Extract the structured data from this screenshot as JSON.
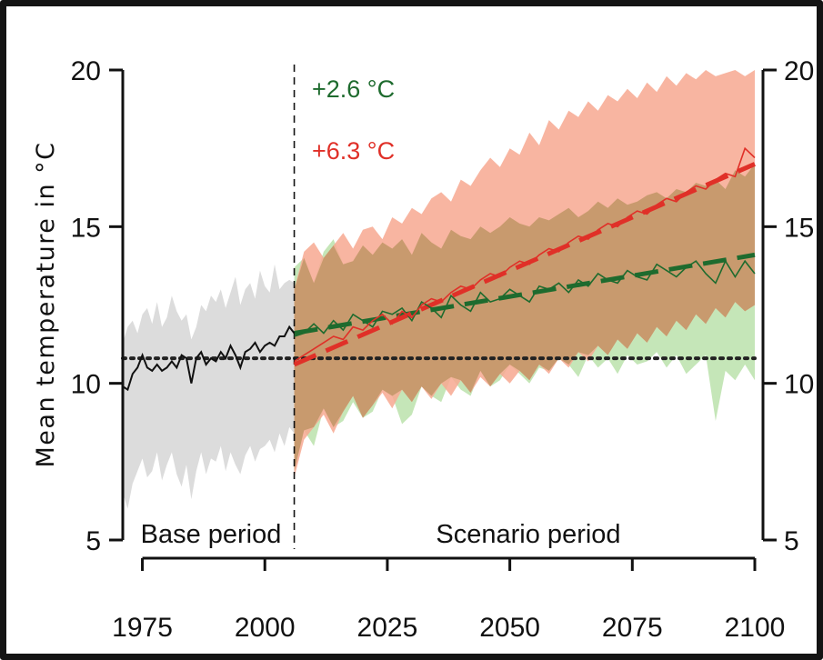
{
  "chart_data": {
    "type": "line",
    "xlabel": "",
    "ylabel": "Mean temperature in °C",
    "ylim": [
      5,
      20
    ],
    "xlim": [
      1971,
      2100
    ],
    "y_ticks": [
      "5",
      "10",
      "15",
      "20"
    ],
    "x_ticks": [
      "1975",
      "2000",
      "2025",
      "2050",
      "2075",
      "2100"
    ],
    "split_year": 2006,
    "period_labels": {
      "base": "Base period",
      "scenario": "Scenario period"
    },
    "annotations": [
      {
        "text": "+2.6 °C",
        "color": "#1e6b2e"
      },
      {
        "text": "+6.3 °C",
        "color": "#e03028"
      }
    ],
    "baseline_mean": 10.8,
    "colors": {
      "base_line": "#111111",
      "base_band": "#dcdcdc",
      "green": "#1e6b2e",
      "green_band": "#bfe3b0",
      "red": "#e03028",
      "red_band": "#f7a890",
      "overlap_band": "#c89a6e"
    },
    "grid": false,
    "series": [
      {
        "x": [
          1971,
          1972,
          1973,
          1974,
          1975,
          1976,
          1977,
          1978,
          1979,
          1980,
          1981,
          1982,
          1983,
          1984,
          1985,
          1986,
          1987,
          1988,
          1989,
          1990,
          1991,
          1992,
          1993,
          1994,
          1995,
          1996,
          1997,
          1998,
          1999,
          2000,
          2001,
          2002,
          2003,
          2004,
          2005,
          2006
        ],
        "values": [
          9.9,
          9.8,
          10.3,
          10.5,
          10.9,
          10.5,
          10.4,
          10.6,
          10.4,
          10.5,
          10.7,
          10.5,
          10.9,
          10.8,
          10.0,
          10.8,
          11.0,
          10.6,
          10.8,
          10.7,
          11.0,
          10.8,
          11.2,
          10.9,
          10.5,
          11.0,
          11.1,
          11.3,
          11.0,
          11.2,
          11.3,
          11.2,
          11.5,
          11.5,
          11.8,
          11.6
        ],
        "band_low": [
          6.5,
          6.0,
          6.8,
          7.2,
          7.6,
          7.0,
          7.2,
          7.8,
          6.9,
          7.4,
          7.8,
          7.1,
          6.7,
          7.4,
          6.3,
          7.2,
          7.8,
          7.1,
          7.6,
          7.5,
          8.0,
          7.2,
          7.8,
          7.4,
          7.1,
          7.7,
          8.0,
          7.5,
          7.9,
          8.0,
          8.2,
          7.8,
          8.4,
          8.0,
          8.6,
          8.4
        ],
        "band_high": [
          11.3,
          11.8,
          12.0,
          11.6,
          12.2,
          12.4,
          11.9,
          12.6,
          11.8,
          12.1,
          12.8,
          12.3,
          12.0,
          12.2,
          11.4,
          11.8,
          12.5,
          12.3,
          12.8,
          12.6,
          13.0,
          12.4,
          12.9,
          13.4,
          12.5,
          13.0,
          13.2,
          12.7,
          13.6,
          13.1,
          12.9,
          13.8,
          13.0,
          13.2,
          13.3,
          13.2
        ]
      },
      {
        "trend": [
          11.6,
          14.1
        ],
        "x": [
          2006,
          2008,
          2010,
          2012,
          2014,
          2016,
          2018,
          2020,
          2022,
          2024,
          2026,
          2028,
          2030,
          2032,
          2034,
          2036,
          2038,
          2040,
          2042,
          2044,
          2046,
          2048,
          2050,
          2052,
          2054,
          2056,
          2058,
          2060,
          2062,
          2064,
          2066,
          2068,
          2070,
          2072,
          2074,
          2076,
          2078,
          2080,
          2082,
          2084,
          2086,
          2088,
          2090,
          2092,
          2094,
          2096,
          2098,
          2100
        ],
        "values": [
          11.5,
          11.6,
          11.9,
          11.6,
          12.0,
          11.7,
          12.2,
          12.0,
          11.8,
          12.3,
          12.2,
          12.4,
          12.0,
          12.6,
          12.4,
          12.1,
          12.8,
          12.5,
          12.3,
          12.9,
          12.6,
          12.7,
          13.0,
          12.8,
          12.6,
          13.1,
          13.0,
          13.2,
          12.9,
          13.3,
          13.1,
          13.5,
          13.3,
          13.2,
          13.6,
          13.4,
          13.3,
          13.8,
          13.6,
          13.4,
          13.7,
          13.9,
          13.5,
          13.2,
          13.9,
          13.4,
          13.9,
          13.5
        ],
        "band_low": [
          7.2,
          8.5,
          8.0,
          9.2,
          8.6,
          8.8,
          9.4,
          8.9,
          9.1,
          9.8,
          9.6,
          8.7,
          9.0,
          9.9,
          9.6,
          9.4,
          10.2,
          9.8,
          9.6,
          10.4,
          9.9,
          10.1,
          10.6,
          10.3,
          10.0,
          10.5,
          10.4,
          10.8,
          10.6,
          10.2,
          10.9,
          10.5,
          10.8,
          10.3,
          10.9,
          10.6,
          10.7,
          11.0,
          10.5,
          10.9,
          10.3,
          10.6,
          10.9,
          8.8,
          10.4,
          10.1,
          10.6,
          10.1
        ],
        "band_high": [
          13.7,
          14.0,
          13.2,
          14.2,
          14.6,
          13.8,
          13.9,
          14.4,
          14.1,
          14.5,
          14.3,
          14.6,
          14.1,
          14.8,
          14.5,
          14.3,
          14.9,
          14.7,
          14.6,
          15.0,
          14.8,
          15.0,
          15.3,
          15.1,
          15.0,
          15.3,
          15.2,
          15.4,
          15.6,
          15.3,
          15.5,
          15.8,
          15.6,
          15.9,
          15.7,
          15.8,
          16.0,
          16.1,
          15.9,
          16.2,
          16.1,
          16.4,
          16.3,
          16.5,
          16.2,
          16.8,
          16.6,
          17.0
        ]
      },
      {
        "trend": [
          10.6,
          17.0
        ],
        "x": [
          2006,
          2008,
          2010,
          2012,
          2014,
          2016,
          2018,
          2020,
          2022,
          2024,
          2026,
          2028,
          2030,
          2032,
          2034,
          2036,
          2038,
          2040,
          2042,
          2044,
          2046,
          2048,
          2050,
          2052,
          2054,
          2056,
          2058,
          2060,
          2062,
          2064,
          2066,
          2068,
          2070,
          2072,
          2074,
          2076,
          2078,
          2080,
          2082,
          2084,
          2086,
          2088,
          2090,
          2092,
          2094,
          2096,
          2098,
          2100
        ],
        "values": [
          10.7,
          10.9,
          11.1,
          11.3,
          11.5,
          11.4,
          11.8,
          11.7,
          12.0,
          12.2,
          11.9,
          12.3,
          12.1,
          12.5,
          12.7,
          12.6,
          12.9,
          13.1,
          13.0,
          13.3,
          13.5,
          13.4,
          13.7,
          13.9,
          13.8,
          14.1,
          14.3,
          14.2,
          14.5,
          14.7,
          14.6,
          14.9,
          15.1,
          15.0,
          15.3,
          15.5,
          15.4,
          15.7,
          15.9,
          15.8,
          16.1,
          16.3,
          16.2,
          16.5,
          16.7,
          16.6,
          17.5,
          17.2
        ],
        "band_low": [
          7.0,
          8.2,
          8.6,
          9.0,
          8.4,
          9.1,
          9.6,
          8.9,
          9.3,
          9.7,
          9.2,
          9.8,
          9.4,
          9.9,
          9.5,
          10.0,
          9.6,
          10.1,
          9.7,
          10.2,
          9.9,
          10.3,
          10.0,
          10.4,
          10.1,
          10.6,
          10.3,
          10.8,
          10.5,
          11.0,
          10.7,
          11.2,
          10.9,
          11.4,
          11.1,
          11.6,
          11.3,
          11.8,
          11.5,
          12.0,
          11.7,
          12.2,
          11.9,
          12.4,
          12.1,
          12.6,
          12.3,
          12.5
        ],
        "band_high": [
          13.0,
          14.2,
          14.5,
          14.0,
          14.4,
          14.8,
          14.3,
          14.9,
          15.0,
          14.6,
          15.3,
          15.1,
          15.6,
          15.4,
          15.9,
          16.1,
          15.8,
          16.5,
          16.3,
          16.8,
          17.2,
          16.9,
          17.5,
          17.3,
          18.0,
          17.6,
          18.4,
          18.1,
          18.7,
          18.5,
          19.0,
          18.7,
          19.2,
          19.0,
          19.4,
          19.1,
          19.6,
          19.3,
          19.8,
          19.5,
          19.9,
          19.7,
          20.0,
          19.8,
          19.9,
          20.0,
          19.8,
          20.0
        ]
      }
    ]
  }
}
